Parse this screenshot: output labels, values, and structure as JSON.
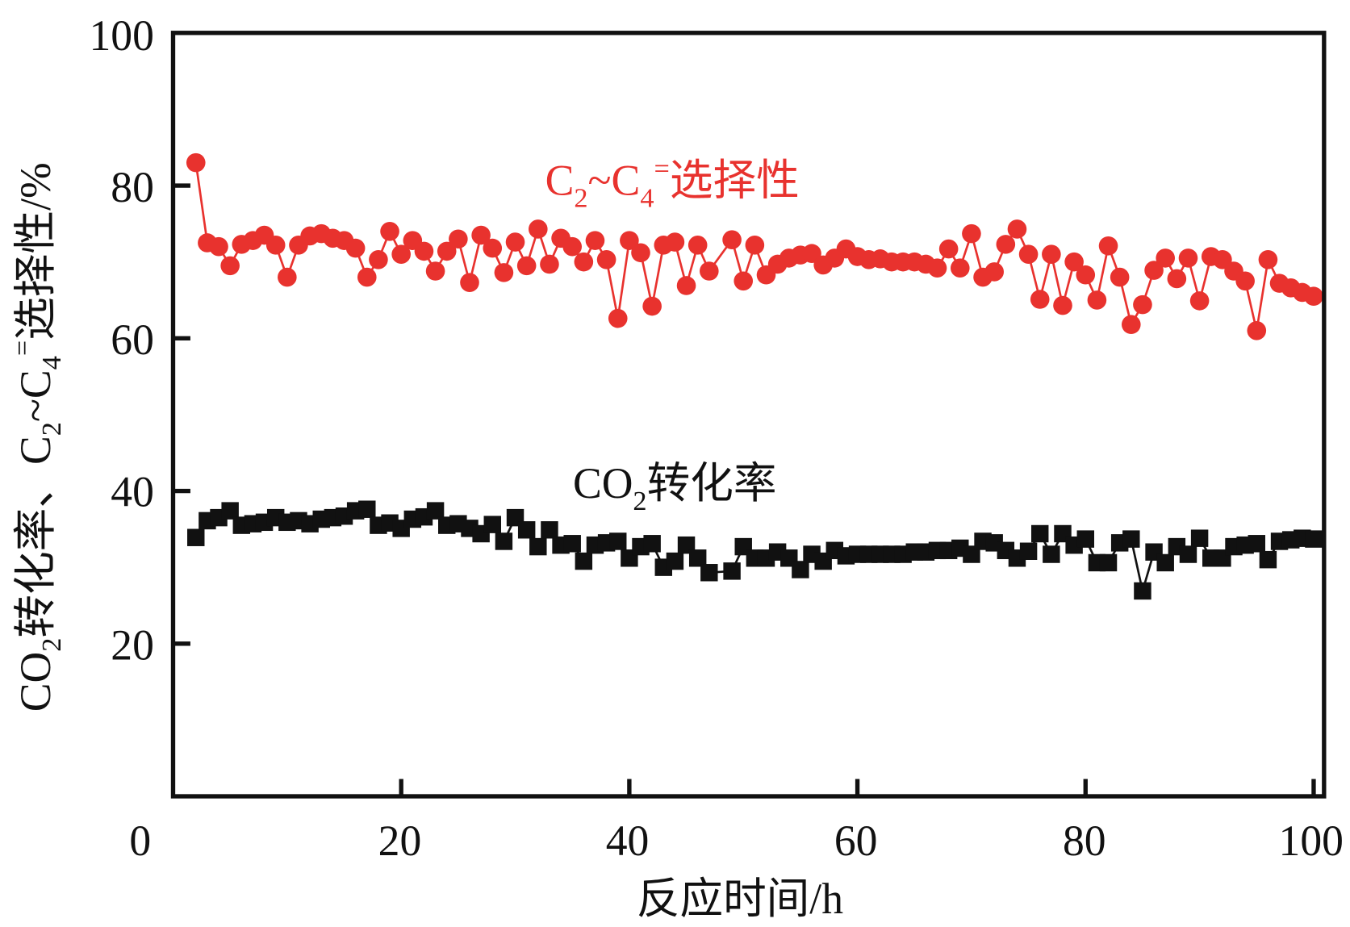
{
  "chart_data": {
    "type": "line",
    "title": "",
    "xlabel": "反应时间/h",
    "ylabel_parts": {
      "p1": "CO",
      "s1": "2",
      "p2": "转化率、C",
      "s2": "2",
      "p3": "~C",
      "s3": "4",
      "sup": "=",
      "p4": "选择性/%"
    },
    "xlim": [
      0,
      100
    ],
    "ylim": [
      0,
      100
    ],
    "xticks": [
      "0",
      "20",
      "40",
      "60",
      "80",
      "100"
    ],
    "yticks": [
      "20",
      "40",
      "60",
      "80",
      "100"
    ],
    "grid": false,
    "x": [
      2,
      3,
      4,
      5,
      6,
      7,
      8,
      9,
      10,
      11,
      12,
      13,
      14,
      15,
      16,
      17,
      18,
      19,
      20,
      21,
      22,
      23,
      24,
      25,
      26,
      27,
      28,
      29,
      30,
      31,
      32,
      33,
      34,
      35,
      36,
      37,
      38,
      39,
      40,
      41,
      42,
      43,
      44,
      45,
      46,
      47,
      49,
      50,
      51,
      52,
      53,
      54,
      55,
      56,
      57,
      58,
      59,
      60,
      61,
      62,
      63,
      64,
      65,
      66,
      67,
      68,
      69,
      70,
      71,
      72,
      73,
      74,
      75,
      76,
      77,
      78,
      79,
      80,
      81,
      82,
      83,
      84,
      85,
      86,
      87,
      88,
      89,
      90,
      91,
      92,
      93,
      94,
      95,
      96,
      97,
      98,
      99,
      100
    ],
    "series": [
      {
        "name": "C2~C4= 选择性",
        "annotation": {
          "p1": "C",
          "s1": "2",
          "p2": "~C",
          "s2": "4",
          "sup": "=",
          "p3": "选择性"
        },
        "color": "#e8322e",
        "marker": "circle",
        "values": [
          83,
          72.5,
          72,
          69.5,
          72.3,
          72.8,
          73.5,
          72.2,
          68,
          72.2,
          73.4,
          73.7,
          73.1,
          72.8,
          71.8,
          68,
          70.3,
          74,
          71,
          72.8,
          71.4,
          68.8,
          71.4,
          73,
          67.3,
          73.5,
          71.8,
          68.6,
          72.6,
          69.5,
          74.3,
          69.7,
          73.1,
          72,
          70,
          72.8,
          70.3,
          62.6,
          72.8,
          71.2,
          64.2,
          72.2,
          72.6,
          66.9,
          72.2,
          68.8,
          72.9,
          67.5,
          72.2,
          68.3,
          69.7,
          70.5,
          70.9,
          71.1,
          69.6,
          70.5,
          71.7,
          70.7,
          70.3,
          70.4,
          70,
          70,
          70,
          69.7,
          69.2,
          71.7,
          69.2,
          73.7,
          68,
          68.7,
          72.3,
          74.3,
          71,
          65.1,
          71,
          64.3,
          70,
          68.3,
          65,
          72.1,
          68,
          61.8,
          64.4,
          68.9,
          70.5,
          67.8,
          70.5,
          64.9,
          70.7,
          70.3,
          68.8,
          67.5,
          61,
          70.3,
          67.2,
          66.6,
          66,
          65.5
        ]
      },
      {
        "name": "CO2 转化率",
        "annotation": {
          "p1": "CO",
          "s1": "2",
          "p2": "转化率"
        },
        "color": "#111111",
        "marker": "square",
        "values": [
          33.9,
          36.1,
          36.5,
          37.4,
          35.5,
          35.7,
          35.9,
          36.5,
          35.9,
          36.1,
          35.7,
          36.3,
          36.5,
          36.7,
          37.4,
          37.6,
          35.5,
          35.8,
          35.1,
          36.3,
          36.6,
          37.4,
          35.5,
          35.7,
          35.1,
          34.4,
          35.6,
          33.4,
          36.5,
          34.9,
          32.7,
          34.9,
          32.9,
          33.1,
          30.8,
          32.9,
          33.2,
          33.4,
          31.2,
          32.7,
          33.1,
          30,
          30.8,
          32.9,
          31.2,
          29.3,
          29.5,
          32.7,
          31.2,
          31.2,
          32,
          31.2,
          29.7,
          31.7,
          30.8,
          32.2,
          31.5,
          31.7,
          31.7,
          31.7,
          31.7,
          31.7,
          32,
          32,
          32.2,
          32.2,
          32.5,
          31.7,
          33.4,
          33.2,
          32.2,
          31.2,
          32.1,
          34.4,
          31.7,
          34.4,
          32.9,
          33.7,
          30.6,
          30.6,
          33.2,
          33.7,
          26.9,
          32,
          30.6,
          32.7,
          31.7,
          33.8,
          31.2,
          31.2,
          32.7,
          32.9,
          33.1,
          31,
          33.4,
          33.6,
          33.8,
          33.7
        ]
      }
    ]
  }
}
